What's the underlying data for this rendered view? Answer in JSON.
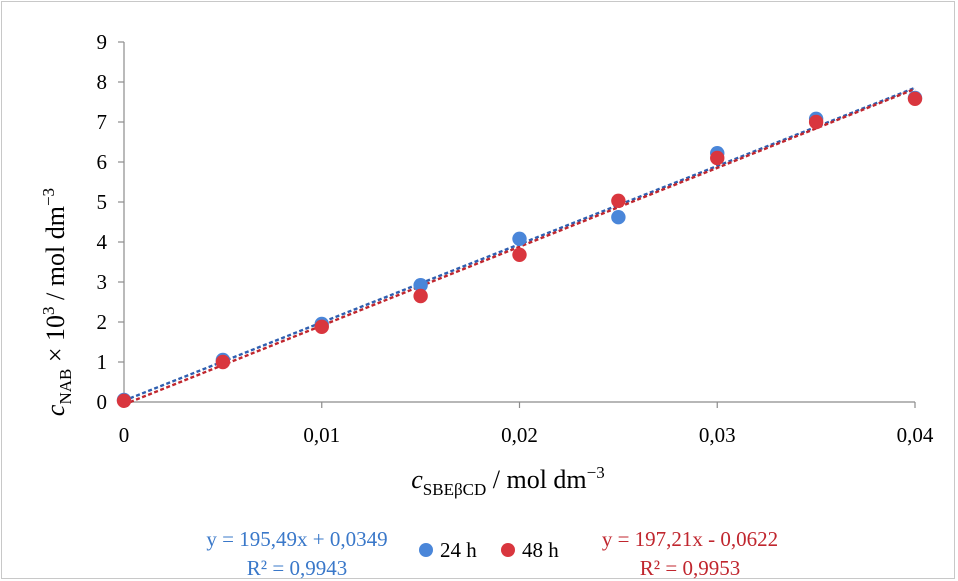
{
  "chart_data": {
    "type": "scatter",
    "x_axis": {
      "label_main": "c",
      "label_sub": "SBEβCD",
      "label_unit": " / mol dm",
      "label_exp": "−3",
      "min": 0,
      "max": 0.04,
      "ticks": [
        0,
        0.01,
        0.02,
        0.03,
        0.04
      ],
      "tick_labels": [
        "0",
        "0,01",
        "0,02",
        "0,03",
        "0,04"
      ]
    },
    "y_axis": {
      "label_main": "c",
      "label_sub": "NAB",
      "label_mult": " × 10",
      "label_mult_exp": "3",
      "label_unit": " / mol dm",
      "label_exp": "−3",
      "min": 0,
      "max": 9,
      "ticks": [
        0,
        1,
        2,
        3,
        4,
        5,
        6,
        7,
        8,
        9
      ],
      "tick_labels": [
        "0",
        "1",
        "2",
        "3",
        "4",
        "5",
        "6",
        "7",
        "8",
        "9"
      ]
    },
    "grid": false,
    "legend_position": "bottom",
    "series": [
      {
        "name": "24 h",
        "color": "#4a86d9",
        "x": [
          0,
          0.005,
          0.01,
          0.015,
          0.02,
          0.025,
          0.03,
          0.035,
          0.04
        ],
        "y": [
          0.05,
          1.05,
          1.95,
          2.92,
          4.08,
          4.62,
          6.22,
          7.08,
          7.6
        ],
        "trendline": {
          "slope": 195.49,
          "intercept": 0.0349,
          "equation": "y = 195,49x + 0,0349",
          "r2": "R² = 0,9943"
        }
      },
      {
        "name": "48 h",
        "color": "#d9363e",
        "x": [
          0,
          0.005,
          0.01,
          0.015,
          0.02,
          0.025,
          0.03,
          0.035,
          0.04
        ],
        "y": [
          0.03,
          1.0,
          1.88,
          2.65,
          3.68,
          5.03,
          6.1,
          7.0,
          7.58
        ],
        "trendline": {
          "slope": 197.21,
          "intercept": -0.0622,
          "equation": "y = 197,21x - 0,0622",
          "r2": "R² = 0,9953"
        }
      }
    ],
    "trendline_colors": {
      "24 h": "#2f5fb0",
      "48 h": "#c0262e"
    },
    "equation_colors": {
      "24 h": "#3a78c9",
      "48 h": "#c0262e"
    }
  }
}
